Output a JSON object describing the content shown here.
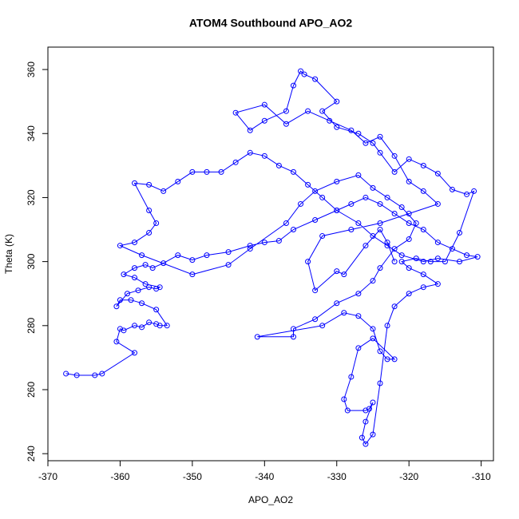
{
  "chart_data": {
    "type": "line",
    "title": "ATOM4 Southbound APO_AO2",
    "x_label": "APO_AO2",
    "y_label": "Theta (K)",
    "markers": "circle",
    "frame": true,
    "xlim": [
      -370.0,
      -308.3
    ],
    "ylim": [
      237.8,
      367.0
    ],
    "xticks": [
      -370,
      -360,
      -350,
      -340,
      -330,
      -320,
      -310
    ],
    "yticks": [
      240,
      260,
      280,
      300,
      320,
      340,
      360
    ],
    "series": [
      {
        "color": "#0000ff",
        "x": [
          -367.5,
          -366,
          -363.5,
          -362.5,
          -358,
          -360.5,
          -360,
          -359.5,
          -358,
          -357,
          -356,
          -355,
          -354.5,
          -353.5,
          -355,
          -357,
          -358.5,
          -360,
          -360.5,
          -359,
          -357.5,
          -356,
          -355,
          -354.5,
          -356.5,
          -358,
          -359.5,
          -358,
          -356.5,
          -355.5,
          -354,
          -352,
          -350,
          -348,
          -345,
          -342,
          -340,
          -338,
          -336,
          -333,
          -330,
          -328,
          -326,
          -324,
          -322,
          -320,
          -318,
          -316,
          -314,
          -312,
          -310.5,
          -313,
          -316,
          -318,
          -321,
          -323,
          -325,
          -327,
          -330,
          -332,
          -334,
          -336,
          -338,
          -340,
          -342,
          -344,
          -346,
          -348,
          -350,
          -352,
          -354,
          -356,
          -358,
          -356,
          -355,
          -356,
          -358,
          -360,
          -357,
          -350,
          -345,
          -342,
          -337,
          -335,
          -333,
          -330,
          -327,
          -325,
          -323,
          -321,
          -319,
          -320,
          -322,
          -324,
          -325,
          -327,
          -330,
          -333,
          -336,
          -336,
          -341,
          -332,
          -329,
          -327,
          -325,
          -324,
          -323,
          -322,
          -325,
          -327,
          -328,
          -329,
          -328.5,
          -326,
          -325.5,
          -325,
          -326,
          -326.5,
          -326,
          -325,
          -324,
          -323,
          -322,
          -320,
          -318,
          -316,
          -318,
          -320,
          -321,
          -319,
          -317,
          -315,
          -313,
          -311,
          -312,
          -314,
          -316,
          -318,
          -320,
          -322,
          -324,
          -325,
          -327,
          -330,
          -332,
          -330,
          -333,
          -334.5,
          -335,
          -336,
          -337,
          -340,
          -342,
          -344,
          -340,
          -337,
          -334,
          -331,
          -328,
          -326,
          -324,
          -322,
          -320,
          -318,
          -316,
          -320,
          -324,
          -328,
          -332,
          -334,
          -333,
          -330,
          -329,
          -326,
          -324,
          -323,
          -322
        ],
        "y": [
          265,
          264.5,
          264.5,
          265,
          271.5,
          275,
          279,
          278.5,
          280,
          279.5,
          281,
          280.5,
          280,
          280,
          285,
          287,
          288,
          288,
          286,
          290,
          291,
          292,
          291.5,
          292,
          293,
          295,
          296,
          298,
          299,
          298,
          299.5,
          302,
          300.5,
          302,
          303,
          305,
          306,
          306.5,
          310,
          313,
          316,
          318,
          320,
          318,
          315,
          312,
          310,
          306,
          304,
          302,
          301.5,
          300,
          301,
          300,
          302,
          305,
          308,
          312,
          316,
          320,
          324,
          328,
          330,
          333,
          334,
          331,
          328,
          328,
          328,
          325,
          322,
          324,
          324.5,
          316,
          312,
          309,
          306,
          305,
          302,
          296,
          299,
          304,
          312,
          318,
          322,
          325,
          327,
          323,
          320,
          317,
          312,
          307,
          304,
          298,
          294,
          290,
          287,
          282,
          279,
          276.5,
          276.5,
          280,
          284,
          283,
          279,
          272,
          269.5,
          269.5,
          276,
          273,
          264,
          257,
          253.5,
          253.5,
          254,
          256,
          250,
          245,
          243,
          246,
          262,
          280,
          286,
          290,
          292,
          293,
          296,
          298,
          300,
          301,
          300,
          300,
          309,
          322,
          321,
          322.5,
          327.5,
          330,
          332,
          328,
          334,
          337,
          340,
          342,
          347,
          350,
          357,
          358.5,
          359.5,
          355,
          347,
          344,
          341,
          346.5,
          349,
          343,
          347,
          344,
          341,
          337,
          339,
          333,
          325,
          322,
          318,
          315,
          312,
          310,
          308,
          300,
          291,
          297,
          296,
          305,
          310,
          306,
          300
        ]
      }
    ]
  }
}
